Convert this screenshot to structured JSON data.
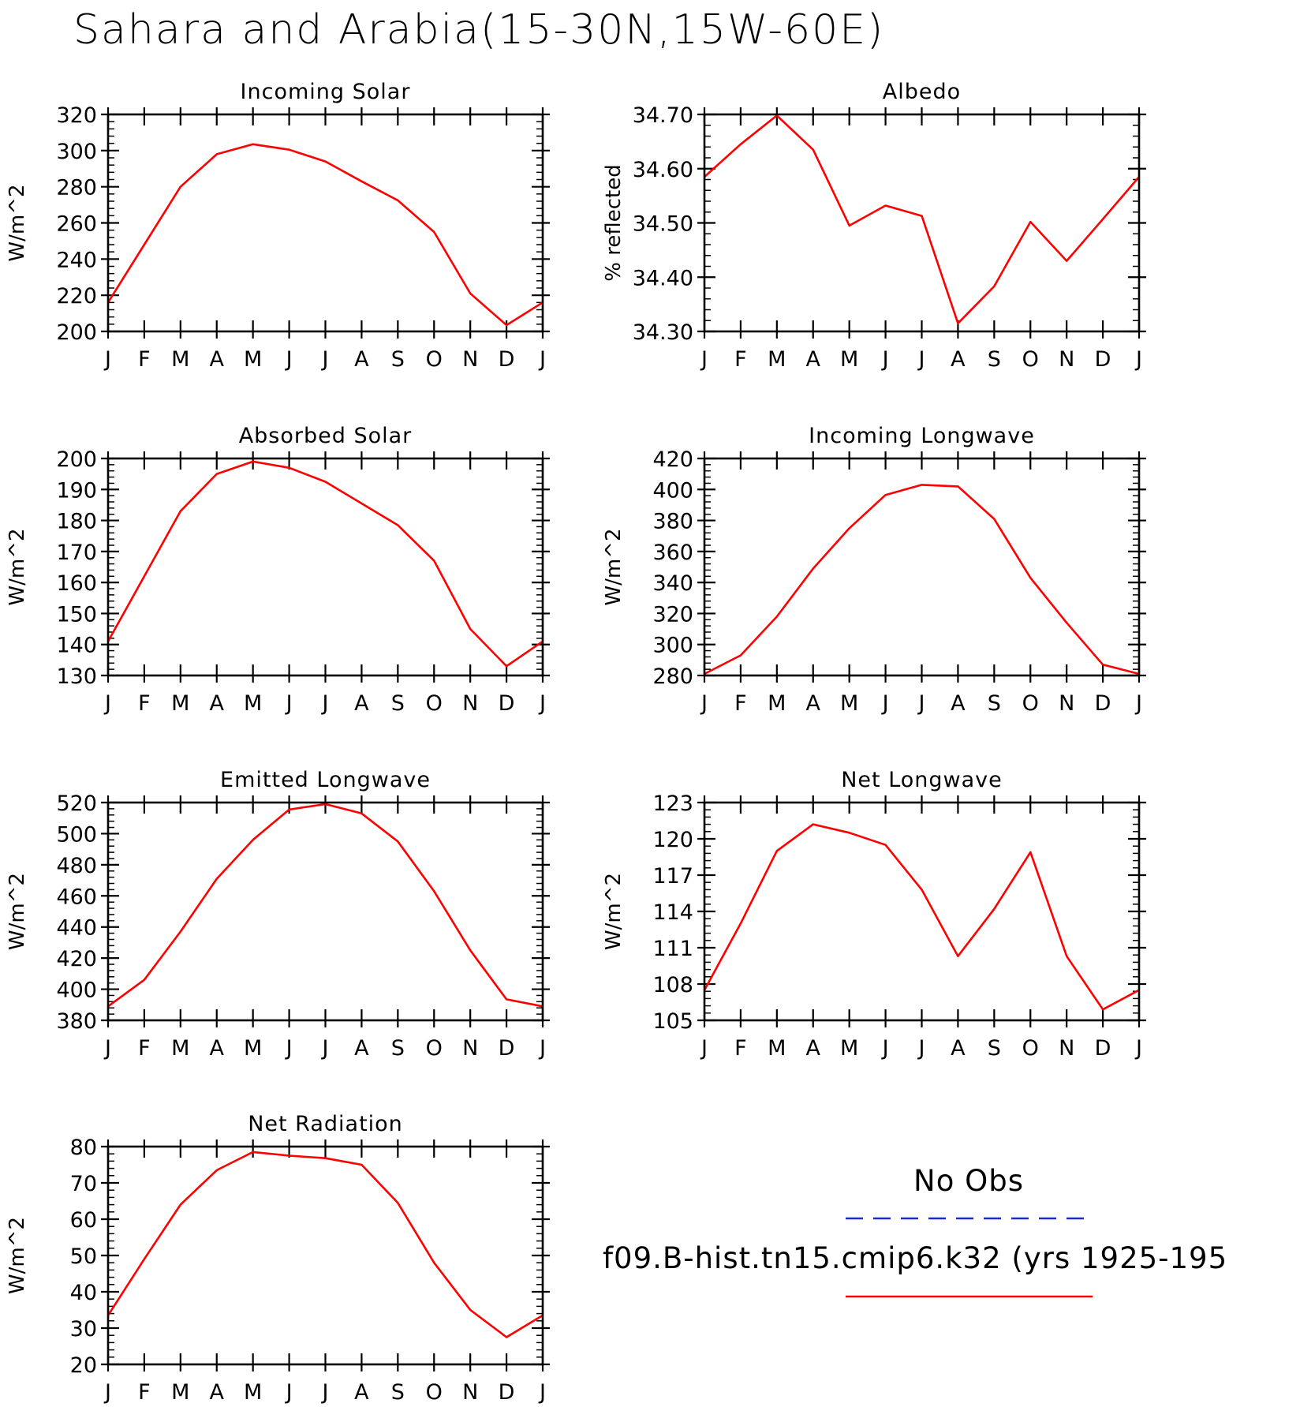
{
  "main_title": "Sahara and Arabia(15-30N,15W-60E)",
  "legend": {
    "obs_label": "No Obs",
    "obs_color": "#1a2bd6",
    "obs_style": "dashed",
    "model_label": "f09.B-hist.tn15.cmip6.k32 (yrs 1925-195",
    "model_color": "#ff0000",
    "model_style": "solid"
  },
  "chart_data": [
    {
      "type": "line",
      "title": "Incoming Solar",
      "ylabel": "W/m^2",
      "xlabel": "",
      "categories": [
        "J",
        "F",
        "M",
        "A",
        "M",
        "J",
        "J",
        "A",
        "S",
        "O",
        "N",
        "D",
        "J"
      ],
      "ylim": [
        200,
        320
      ],
      "yticks": [
        "200",
        "220",
        "240",
        "260",
        "280",
        "300",
        "320"
      ],
      "series": [
        {
          "color": "#ff0000",
          "values": [
            216,
            248,
            280,
            298,
            303.5,
            300.5,
            294,
            283,
            272.5,
            255,
            221,
            203.5,
            216
          ]
        }
      ]
    },
    {
      "type": "line",
      "title": "Albedo",
      "ylabel": "% reflected",
      "xlabel": "",
      "categories": [
        "J",
        "F",
        "M",
        "A",
        "M",
        "J",
        "J",
        "A",
        "S",
        "O",
        "N",
        "D",
        "J"
      ],
      "ylim": [
        34.3,
        34.7
      ],
      "yticks": [
        "34.30",
        "34.40",
        "34.50",
        "34.60",
        "34.70"
      ],
      "series": [
        {
          "color": "#ff0000",
          "values": [
            34.585,
            34.645,
            34.698,
            34.635,
            34.495,
            34.532,
            34.513,
            34.315,
            34.383,
            34.502,
            34.43,
            34.507,
            34.585
          ]
        }
      ]
    },
    {
      "type": "line",
      "title": "Absorbed Solar",
      "ylabel": "W/m^2",
      "xlabel": "",
      "categories": [
        "J",
        "F",
        "M",
        "A",
        "M",
        "J",
        "J",
        "A",
        "S",
        "O",
        "N",
        "D",
        "J"
      ],
      "ylim": [
        130,
        200
      ],
      "yticks": [
        "130",
        "140",
        "150",
        "160",
        "170",
        "180",
        "190",
        "200"
      ],
      "series": [
        {
          "color": "#ff0000",
          "values": [
            141,
            162,
            183,
            195,
            199,
            197,
            192.5,
            185.5,
            178.5,
            167,
            145,
            133,
            141
          ]
        }
      ]
    },
    {
      "type": "line",
      "title": "Incoming Longwave",
      "ylabel": "W/m^2",
      "xlabel": "",
      "categories": [
        "J",
        "F",
        "M",
        "A",
        "M",
        "J",
        "J",
        "A",
        "S",
        "O",
        "N",
        "D",
        "J"
      ],
      "ylim": [
        280,
        420
      ],
      "yticks": [
        "280",
        "300",
        "320",
        "340",
        "360",
        "380",
        "400",
        "420"
      ],
      "series": [
        {
          "color": "#ff0000",
          "values": [
            281,
            293,
            318,
            349,
            375,
            396.5,
            403,
            402,
            381,
            343,
            314,
            287,
            281
          ]
        }
      ]
    },
    {
      "type": "line",
      "title": "Emitted Longwave",
      "ylabel": "W/m^2",
      "xlabel": "",
      "categories": [
        "J",
        "F",
        "M",
        "A",
        "M",
        "J",
        "J",
        "A",
        "S",
        "O",
        "N",
        "D",
        "J"
      ],
      "ylim": [
        380,
        520
      ],
      "yticks": [
        "380",
        "400",
        "420",
        "440",
        "460",
        "480",
        "500",
        "520"
      ],
      "series": [
        {
          "color": "#ff0000",
          "values": [
            389,
            406,
            437,
            471,
            496,
            515.5,
            519,
            513,
            495,
            463,
            425,
            393.5,
            389
          ]
        }
      ]
    },
    {
      "type": "line",
      "title": "Net Longwave",
      "ylabel": "W/m^2",
      "xlabel": "",
      "categories": [
        "J",
        "F",
        "M",
        "A",
        "M",
        "J",
        "J",
        "A",
        "S",
        "O",
        "N",
        "D",
        "J"
      ],
      "ylim": [
        105,
        123
      ],
      "yticks": [
        "105",
        "108",
        "111",
        "114",
        "117",
        "120",
        "123"
      ],
      "series": [
        {
          "color": "#ff0000",
          "values": [
            107.5,
            113,
            119,
            121.2,
            120.5,
            119.5,
            115.8,
            110.3,
            114.2,
            118.9,
            110.3,
            105.9,
            107.5
          ]
        }
      ]
    },
    {
      "type": "line",
      "title": "Net Radiation",
      "ylabel": "W/m^2",
      "xlabel": "",
      "categories": [
        "J",
        "F",
        "M",
        "A",
        "M",
        "J",
        "J",
        "A",
        "S",
        "O",
        "N",
        "D",
        "J"
      ],
      "ylim": [
        20,
        80
      ],
      "yticks": [
        "20",
        "30",
        "40",
        "50",
        "60",
        "70",
        "80"
      ],
      "series": [
        {
          "color": "#ff0000",
          "values": [
            33.5,
            49,
            64,
            73.5,
            78.5,
            77.5,
            76.8,
            75,
            64.5,
            48,
            35,
            27.5,
            33.5
          ]
        }
      ]
    }
  ]
}
